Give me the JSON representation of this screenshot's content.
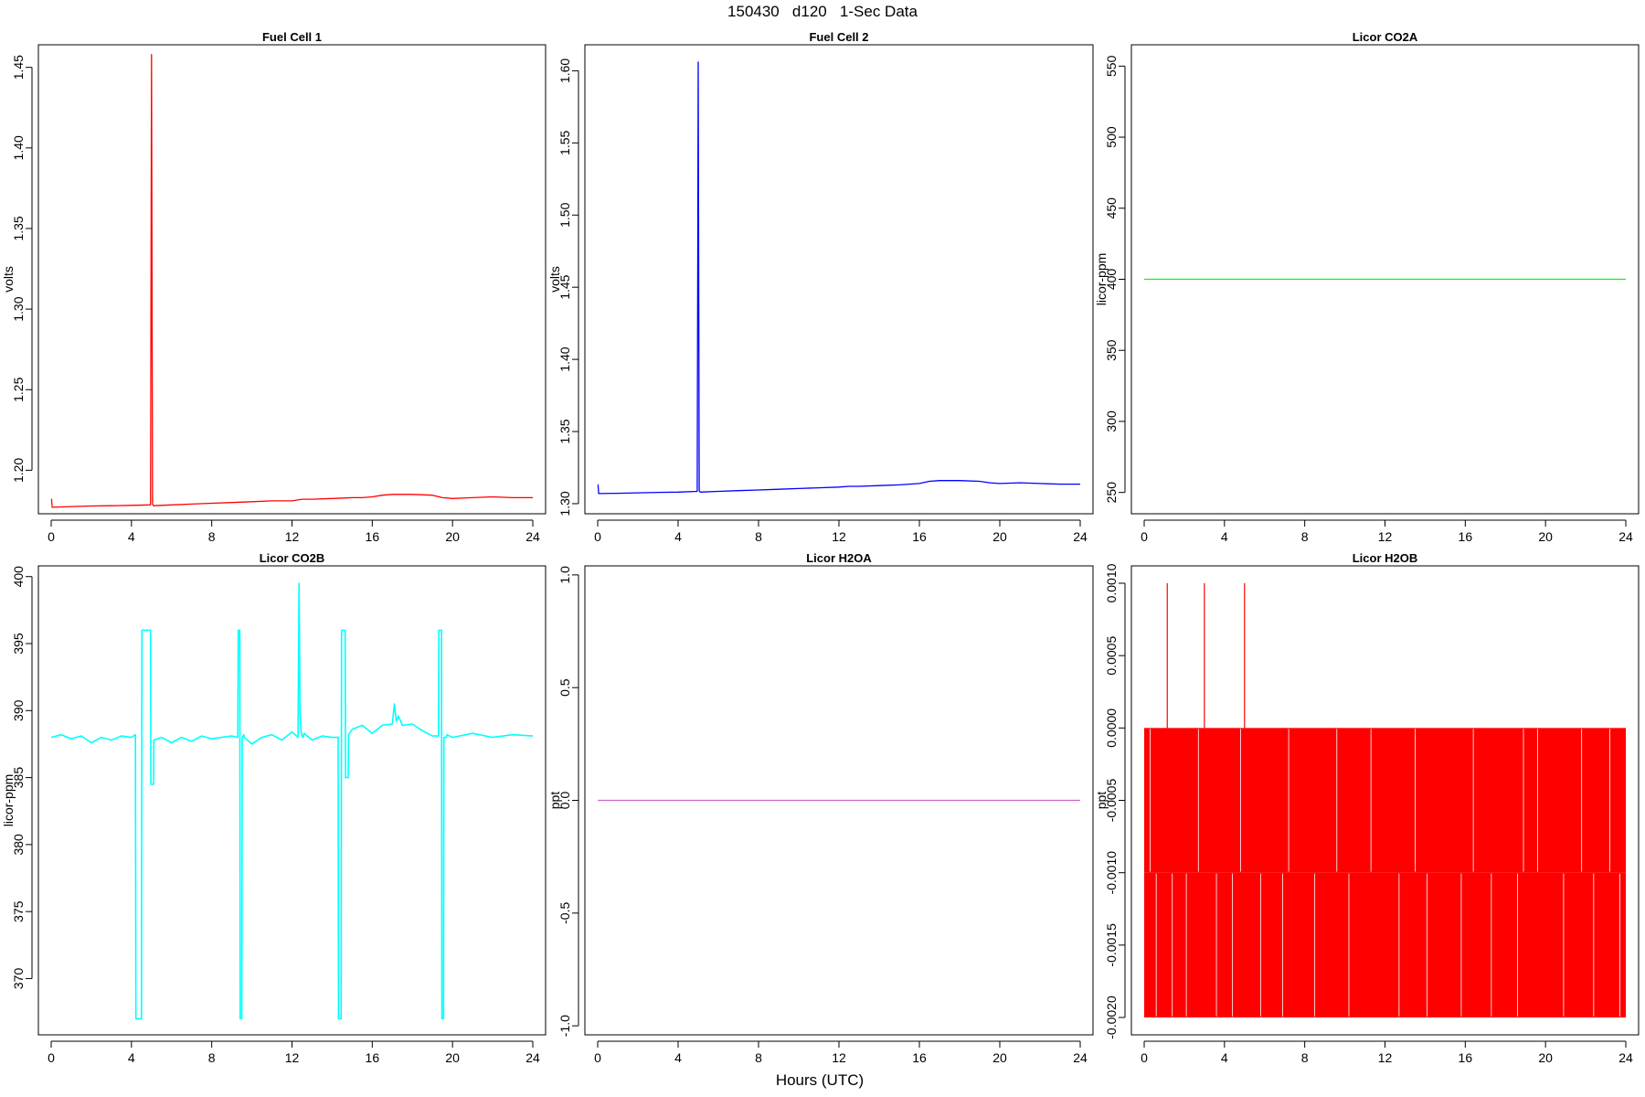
{
  "figure": {
    "suptitle": "150430   d120   1-Sec Data",
    "xlabel": "Hours (UTC)"
  },
  "chart_data": [
    {
      "type": "line",
      "title": "Fuel Cell 1",
      "ylabel": "volts",
      "color": "#ff0000",
      "xlim": [
        0,
        24
      ],
      "ylim": [
        1.173,
        1.464
      ],
      "xticks": [
        0,
        4,
        8,
        12,
        16,
        20,
        24
      ],
      "xtick_labels": [
        "0",
        "4",
        "8",
        "12",
        "16",
        "20",
        "24"
      ],
      "yticks": [
        1.2,
        1.25,
        1.3,
        1.35,
        1.4,
        1.45
      ],
      "ytick_labels": [
        "1.20",
        "1.25",
        "1.30",
        "1.35",
        "1.40",
        "1.45"
      ],
      "series": [
        {
          "x": [
            0,
            0.02,
            0.05,
            1,
            2,
            3,
            4,
            4.95,
            5.0,
            5.05,
            5.1,
            6,
            7,
            8,
            9,
            10,
            11,
            12,
            12.5,
            13,
            14,
            15,
            15.5,
            16,
            16.5,
            17,
            18,
            19,
            19.5,
            20,
            21,
            22,
            23,
            24
          ],
          "y": [
            1.182,
            1.182,
            1.177,
            1.1775,
            1.1778,
            1.178,
            1.1782,
            1.1785,
            1.458,
            1.179,
            1.178,
            1.1785,
            1.179,
            1.1795,
            1.18,
            1.1805,
            1.181,
            1.181,
            1.182,
            1.182,
            1.1825,
            1.183,
            1.183,
            1.1835,
            1.1845,
            1.185,
            1.185,
            1.1845,
            1.183,
            1.1825,
            1.183,
            1.1835,
            1.183,
            1.183
          ]
        }
      ]
    },
    {
      "type": "line",
      "title": "Fuel Cell 2",
      "ylabel": "volts",
      "color": "#0000ff",
      "xlim": [
        0,
        24
      ],
      "ylim": [
        1.293,
        1.618
      ],
      "xticks": [
        0,
        4,
        8,
        12,
        16,
        20,
        24
      ],
      "xtick_labels": [
        "0",
        "4",
        "8",
        "12",
        "16",
        "20",
        "24"
      ],
      "yticks": [
        1.3,
        1.35,
        1.4,
        1.45,
        1.5,
        1.55,
        1.6
      ],
      "ytick_labels": [
        "1.30",
        "1.35",
        "1.40",
        "1.45",
        "1.50",
        "1.55",
        "1.60"
      ],
      "series": [
        {
          "x": [
            0,
            0.02,
            0.05,
            1,
            2,
            3,
            4,
            4.95,
            5.0,
            5.05,
            5.1,
            6,
            7,
            8,
            9,
            10,
            11,
            12,
            12.5,
            13,
            14,
            15,
            15.5,
            16,
            16.5,
            17,
            18,
            19,
            19.5,
            20,
            21,
            22,
            23,
            24
          ],
          "y": [
            1.313,
            1.313,
            1.307,
            1.3072,
            1.3075,
            1.3078,
            1.308,
            1.3085,
            1.606,
            1.309,
            1.308,
            1.3085,
            1.309,
            1.3095,
            1.31,
            1.3105,
            1.311,
            1.3115,
            1.312,
            1.312,
            1.3125,
            1.313,
            1.3135,
            1.314,
            1.3155,
            1.316,
            1.316,
            1.3155,
            1.3145,
            1.314,
            1.3145,
            1.314,
            1.3135,
            1.3135
          ]
        }
      ]
    },
    {
      "type": "line",
      "title": "Licor CO2A",
      "ylabel": "licor-ppm",
      "color": "#00ff00",
      "xlim": [
        0,
        24
      ],
      "ylim": [
        235,
        565
      ],
      "xticks": [
        0,
        4,
        8,
        12,
        16,
        20,
        24
      ],
      "xtick_labels": [
        "0",
        "4",
        "8",
        "12",
        "16",
        "20",
        "24"
      ],
      "yticks": [
        250,
        300,
        350,
        400,
        450,
        500,
        550
      ],
      "ytick_labels": [
        "250",
        "300",
        "350",
        "400",
        "450",
        "500",
        "550"
      ],
      "series": [
        {
          "x": [
            0,
            24
          ],
          "y": [
            400,
            400
          ]
        }
      ]
    },
    {
      "type": "line",
      "title": "Licor CO2B",
      "ylabel": "licor-ppm",
      "color": "#00ffff",
      "xlim": [
        0,
        24
      ],
      "ylim": [
        365.8,
        400.8
      ],
      "xticks": [
        0,
        4,
        8,
        12,
        16,
        20,
        24
      ],
      "xtick_labels": [
        "0",
        "4",
        "8",
        "12",
        "16",
        "20",
        "24"
      ],
      "yticks": [
        370,
        375,
        380,
        385,
        390,
        395,
        400
      ],
      "ytick_labels": [
        "370",
        "375",
        "380",
        "385",
        "390",
        "395",
        "400"
      ],
      "series": [
        {
          "x": [
            0,
            0.5,
            1,
            1.5,
            2,
            2.5,
            3,
            3.5,
            4,
            4.2,
            4.22,
            4.5,
            4.52,
            4.95,
            4.97,
            5.1,
            5.12,
            5.5,
            6,
            6.5,
            7,
            7.5,
            8,
            8.5,
            9,
            9.3,
            9.32,
            9.4,
            9.42,
            9.5,
            9.52,
            9.6,
            9.62,
            10,
            10.5,
            11,
            11.5,
            12,
            12.3,
            12.35,
            12.4,
            12.45,
            12.5,
            12.55,
            12.6,
            13,
            13.5,
            14,
            14.3,
            14.32,
            14.45,
            14.47,
            14.65,
            14.67,
            14.8,
            14.82,
            15,
            15.5,
            16,
            16.5,
            17,
            17.1,
            17.2,
            17.3,
            17.5,
            18,
            18.5,
            19,
            19.3,
            19.32,
            19.45,
            19.47,
            19.55,
            19.57,
            19.7,
            19.72,
            20,
            21,
            22,
            23,
            24
          ],
          "y": [
            388,
            388.2,
            387.9,
            388.1,
            387.6,
            388,
            387.8,
            388.1,
            388,
            388.2,
            367,
            367,
            396,
            396,
            384.5,
            384.5,
            387.8,
            388,
            387.6,
            388,
            387.7,
            388.1,
            387.9,
            388,
            388.1,
            388,
            396,
            396,
            367,
            367,
            388,
            388.2,
            388,
            387.5,
            388,
            388.2,
            387.8,
            388.4,
            388,
            399.5,
            390,
            388.5,
            388.1,
            388,
            388.3,
            387.8,
            388.1,
            388,
            388,
            367,
            367,
            396,
            396,
            385,
            385,
            388.2,
            388.6,
            388.9,
            388.3,
            388.9,
            389,
            390.5,
            389.2,
            389.6,
            388.9,
            389,
            388.5,
            388.1,
            388.1,
            396,
            396,
            367,
            367,
            388,
            388,
            388.2,
            388,
            388.3,
            388,
            388.2,
            388.1
          ]
        }
      ]
    },
    {
      "type": "line",
      "title": "Licor H2OA",
      "ylabel": "ppt",
      "color": "#cc66cc",
      "xlim": [
        0,
        24
      ],
      "ylim": [
        -1.04,
        1.04
      ],
      "xticks": [
        0,
        4,
        8,
        12,
        16,
        20,
        24
      ],
      "xtick_labels": [
        "0",
        "4",
        "8",
        "12",
        "16",
        "20",
        "24"
      ],
      "yticks": [
        -1.0,
        -0.5,
        0.0,
        0.5,
        1.0
      ],
      "ytick_labels": [
        "-1.0",
        "-0.5",
        "0.0",
        "0.5",
        "1.0"
      ],
      "series": [
        {
          "x": [
            0,
            24
          ],
          "y": [
            0,
            0
          ]
        }
      ]
    },
    {
      "type": "line",
      "title": "Licor H2OB",
      "ylabel": "ppt",
      "color": "#ff0000",
      "xlim": [
        0,
        24
      ],
      "ylim": [
        -0.00212,
        0.00112
      ],
      "xticks": [
        0,
        4,
        8,
        12,
        16,
        20,
        24
      ],
      "xtick_labels": [
        "0",
        "4",
        "8",
        "12",
        "16",
        "20",
        "24"
      ],
      "yticks": [
        -0.002,
        -0.0015,
        -0.001,
        -0.0005,
        0.0,
        0.0005,
        0.001
      ],
      "ytick_labels": [
        "-0.0020",
        "-0.0015",
        "-0.0010",
        "-0.0005",
        "0.0000",
        "0.0005",
        "0.0010"
      ],
      "series": [
        {
          "band_upper": {
            "x_range": [
              0,
              24
            ],
            "y_range": [
              -0.001,
              0.0
            ]
          },
          "band_lower": {
            "x_range": [
              0,
              24
            ],
            "y_range": [
              -0.002,
              -0.001
            ]
          },
          "spikes": [
            {
              "x": 1.15,
              "y": 0.001
            },
            {
              "x": 3.0,
              "y": 0.001
            },
            {
              "x": 5.0,
              "y": 0.001
            }
          ]
        }
      ]
    }
  ]
}
